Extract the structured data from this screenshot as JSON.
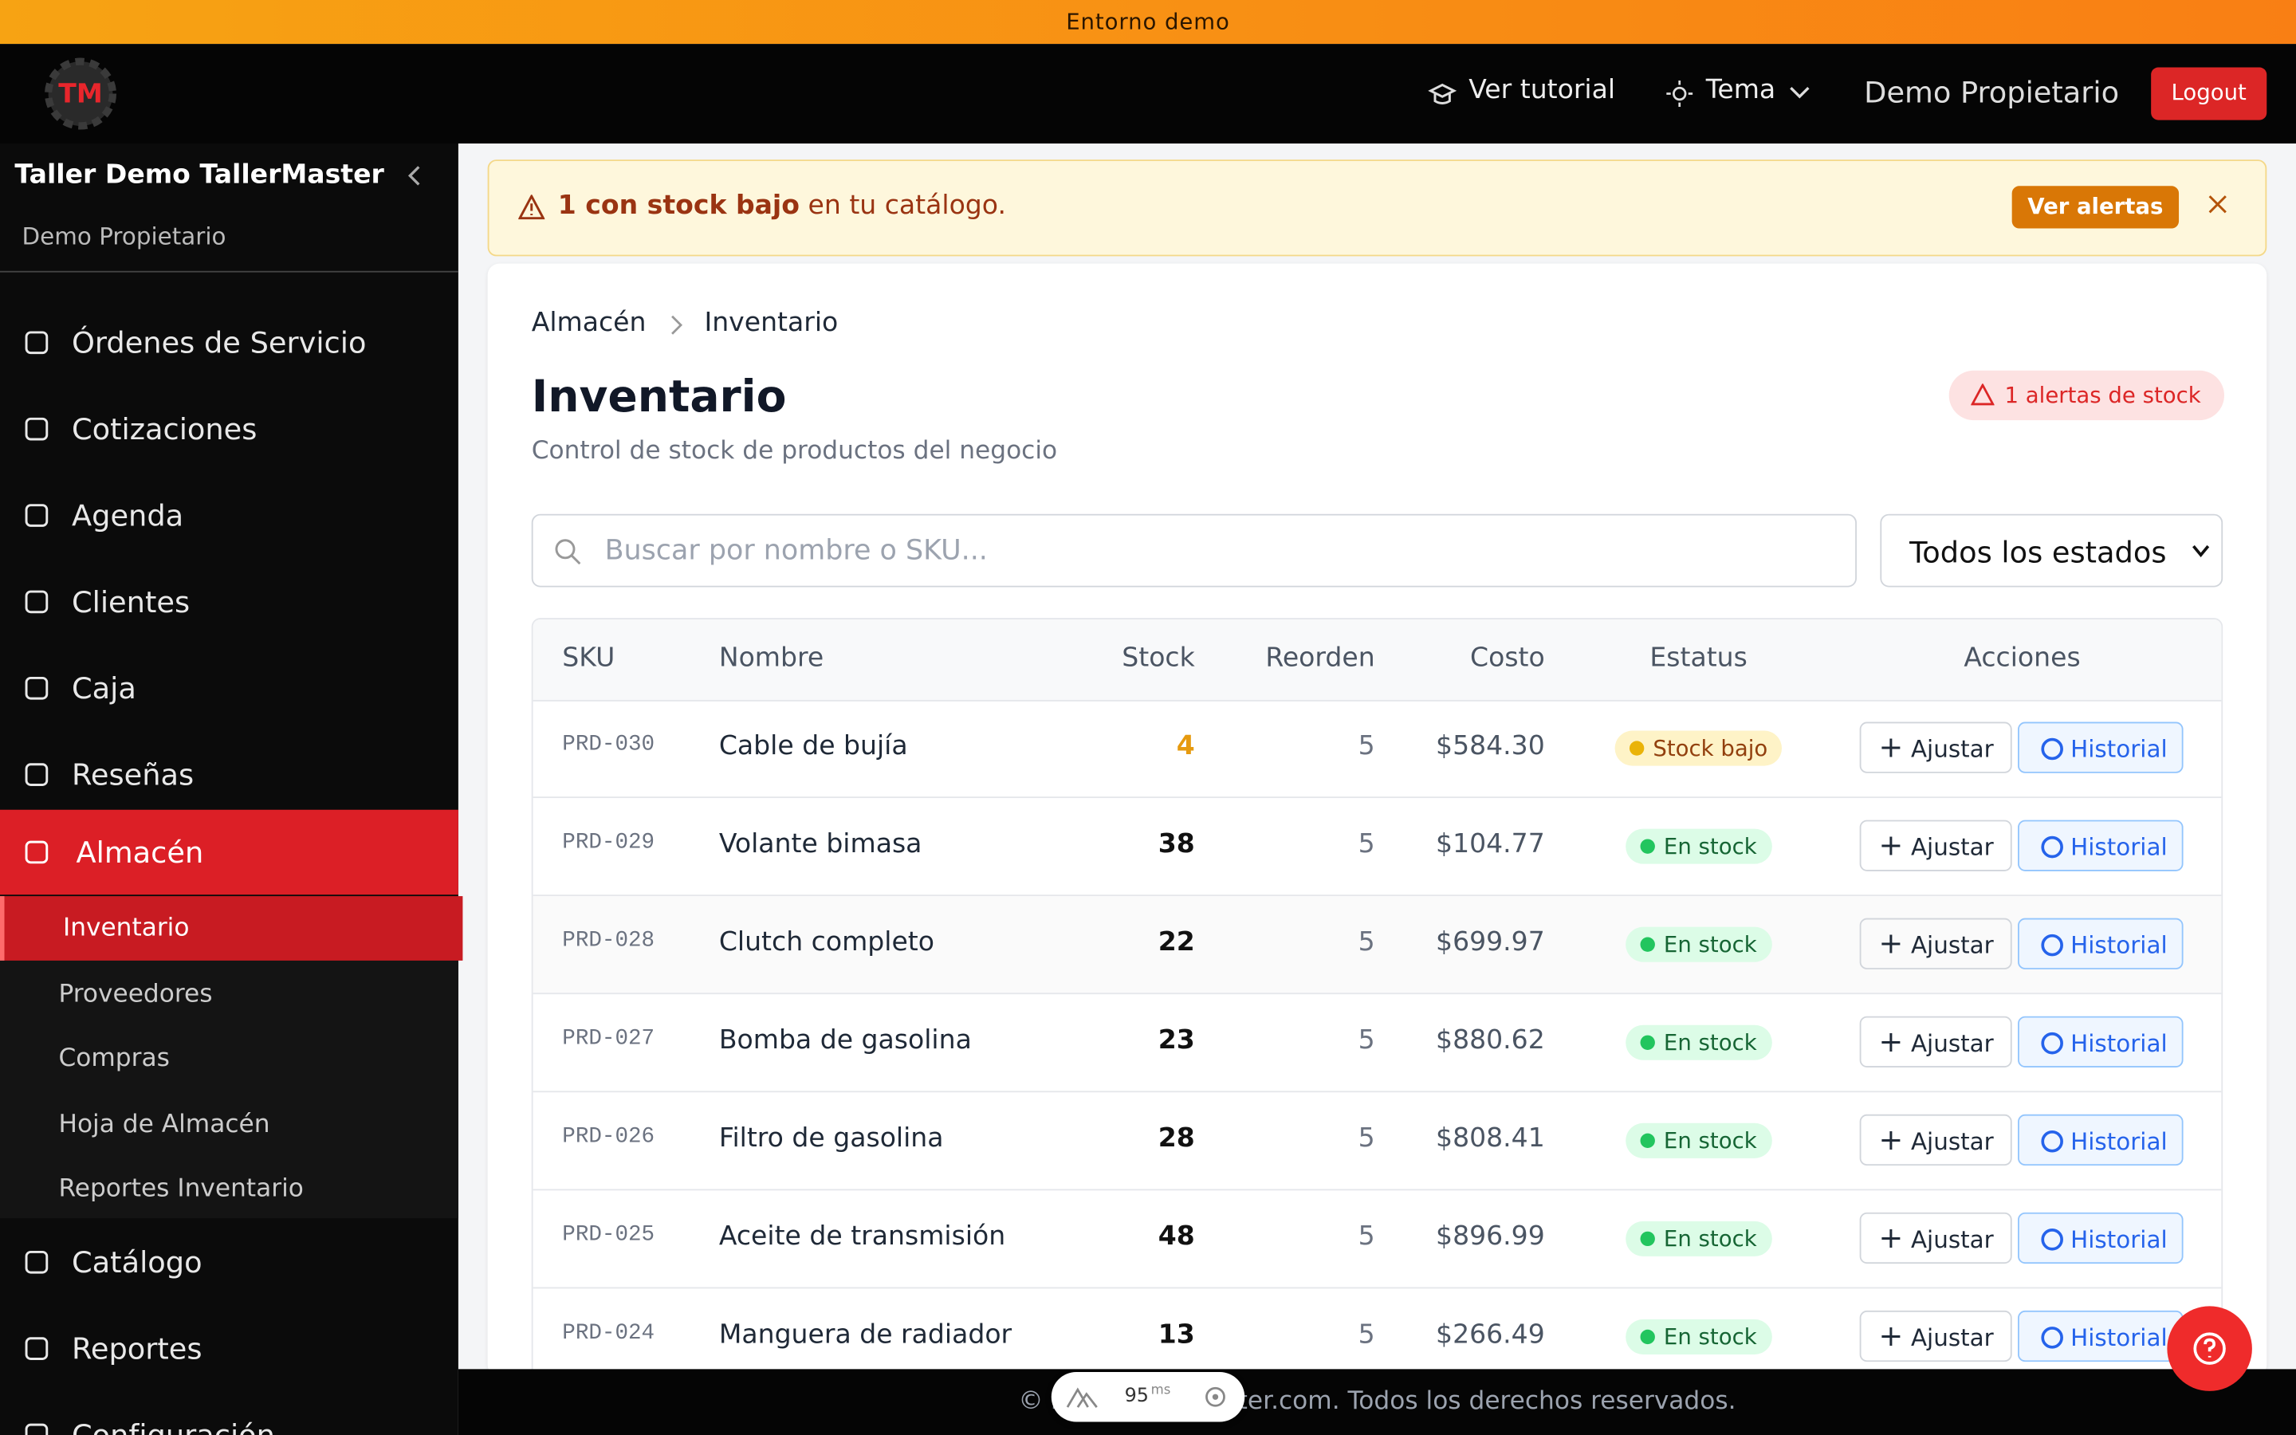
{
  "banner": "Entorno demo",
  "topbar": {
    "tutorial": "Ver tutorial",
    "theme": "Tema",
    "user": "Demo Propietario",
    "logout": "Logout"
  },
  "sidebar": {
    "workshop": "Taller Demo TallerMaster",
    "user": "Demo Propietario",
    "items": [
      "Órdenes de Servicio",
      "Cotizaciones",
      "Agenda",
      "Clientes",
      "Caja",
      "Reseñas"
    ],
    "active": "Almacén",
    "subitems": [
      "Inventario",
      "Proveedores",
      "Compras",
      "Hoja de Almacén",
      "Reportes Inventario"
    ],
    "after": [
      "Catálogo",
      "Reportes",
      "Configuración"
    ]
  },
  "alert": {
    "bold": "1 con stock bajo",
    "text": " en tu catálogo.",
    "button": "Ver alertas"
  },
  "breadcrumb": [
    "Almacén",
    "Inventario"
  ],
  "header": {
    "title": "Inventario",
    "subtitle": "Control de stock de productos del negocio",
    "badge": "1 alertas de stock"
  },
  "filters": {
    "search": "Buscar por nombre o SKU...",
    "select": "Todos los estados"
  },
  "table": {
    "columns": [
      "SKU",
      "Nombre",
      "Stock",
      "Reorden",
      "Costo",
      "Estatus",
      "Acciones"
    ],
    "actions": [
      "Ajustar",
      "Historial"
    ],
    "rows": [
      [
        "PRD-030",
        "Cable de bujía",
        4,
        5,
        "$584.30",
        "Stock bajo"
      ],
      [
        "PRD-029",
        "Volante bimasa",
        38,
        5,
        "$104.77",
        "En stock"
      ],
      [
        "PRD-028",
        "Clutch completo",
        22,
        5,
        "$699.97",
        "En stock"
      ],
      [
        "PRD-027",
        "Bomba de gasolina",
        23,
        5,
        "$880.62",
        "En stock"
      ],
      [
        "PRD-026",
        "Filtro de gasolina",
        28,
        5,
        "$808.41",
        "En stock"
      ],
      [
        "PRD-025",
        "Aceite de transmisión",
        48,
        5,
        "$896.99",
        "En stock"
      ],
      [
        "PRD-024",
        "Manguera de radiador",
        13,
        5,
        "$266.49",
        "En stock"
      ]
    ]
  },
  "footer": "© 2025 TallerMaster.com. Todos los derechos reservados.",
  "perf": {
    "value": "95",
    "unit": "ms"
  }
}
